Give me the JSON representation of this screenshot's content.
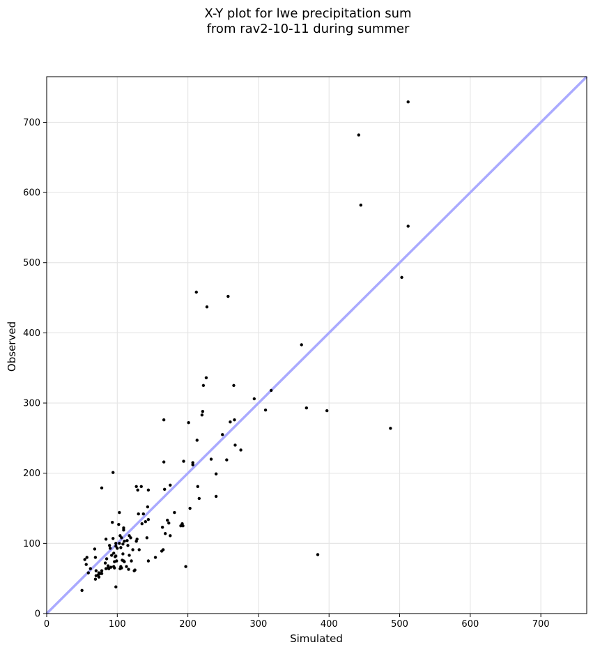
{
  "chart_data": {
    "type": "scatter",
    "title_line1": "X-Y plot for lwe precipitation sum",
    "title_line2": "from rav2-10-11 during summer",
    "xlabel": "Simulated",
    "ylabel": "Observed",
    "xlim": [
      0,
      765
    ],
    "ylim": [
      0,
      765
    ],
    "xticks": [
      0,
      100,
      200,
      300,
      400,
      500,
      600,
      700
    ],
    "yticks": [
      0,
      100,
      200,
      300,
      400,
      500,
      600,
      700
    ],
    "xtick_labels": [
      "0",
      "100",
      "200",
      "300",
      "400",
      "500",
      "600",
      "700"
    ],
    "ytick_labels": [
      "0",
      "100",
      "200",
      "300",
      "400",
      "500",
      "600",
      "700"
    ],
    "grid": true,
    "reference_line": {
      "type": "identity",
      "color": "#aaaaff"
    },
    "point_color": "#000000",
    "points": [
      [
        512,
        729
      ],
      [
        442,
        682
      ],
      [
        445,
        582
      ],
      [
        512,
        552
      ],
      [
        503,
        479
      ],
      [
        212,
        458
      ],
      [
        257,
        452
      ],
      [
        227,
        437
      ],
      [
        361,
        383
      ],
      [
        226,
        336
      ],
      [
        222,
        325
      ],
      [
        265,
        325
      ],
      [
        318,
        318
      ],
      [
        294,
        306
      ],
      [
        368,
        293
      ],
      [
        310,
        290
      ],
      [
        397,
        289
      ],
      [
        221,
        288
      ],
      [
        220,
        283
      ],
      [
        166,
        276
      ],
      [
        266,
        276
      ],
      [
        260,
        273
      ],
      [
        201,
        272
      ],
      [
        487,
        264
      ],
      [
        249,
        255
      ],
      [
        213,
        247
      ],
      [
        267,
        240
      ],
      [
        275,
        233
      ],
      [
        233,
        220
      ],
      [
        255,
        219
      ],
      [
        166,
        216
      ],
      [
        194,
        217
      ],
      [
        207,
        215
      ],
      [
        207,
        212
      ],
      [
        94,
        201
      ],
      [
        240,
        199
      ],
      [
        175,
        183
      ],
      [
        127,
        181
      ],
      [
        214,
        181
      ],
      [
        134,
        181
      ],
      [
        78,
        179
      ],
      [
        167,
        177
      ],
      [
        129,
        176
      ],
      [
        144,
        176
      ],
      [
        240,
        167
      ],
      [
        216,
        164
      ],
      [
        203,
        150
      ],
      [
        143,
        152
      ],
      [
        103,
        144
      ],
      [
        181,
        144
      ],
      [
        130,
        142
      ],
      [
        137,
        142
      ],
      [
        144,
        134
      ],
      [
        140,
        131
      ],
      [
        93,
        130
      ],
      [
        135,
        128
      ],
      [
        171,
        133
      ],
      [
        173,
        129
      ],
      [
        192,
        128
      ],
      [
        102,
        127
      ],
      [
        193,
        125
      ],
      [
        190,
        125
      ],
      [
        164,
        123
      ],
      [
        109,
        122
      ],
      [
        109,
        119
      ],
      [
        168,
        114
      ],
      [
        175,
        111
      ],
      [
        104,
        111
      ],
      [
        117,
        111
      ],
      [
        119,
        108
      ],
      [
        106,
        108
      ],
      [
        128,
        106
      ],
      [
        94,
        107
      ],
      [
        84,
        106
      ],
      [
        142,
        108
      ],
      [
        110,
        103
      ],
      [
        114,
        104
      ],
      [
        127,
        103
      ],
      [
        103,
        100
      ],
      [
        98,
        100
      ],
      [
        108,
        99
      ],
      [
        89,
        97
      ],
      [
        115,
        97
      ],
      [
        98,
        96
      ],
      [
        90,
        93
      ],
      [
        68,
        92
      ],
      [
        105,
        94
      ],
      [
        100,
        93
      ],
      [
        131,
        91
      ],
      [
        122,
        91
      ],
      [
        165,
        91
      ],
      [
        163,
        89
      ],
      [
        95,
        86
      ],
      [
        108,
        85
      ],
      [
        92,
        83
      ],
      [
        117,
        83
      ],
      [
        98,
        82
      ],
      [
        97,
        81
      ],
      [
        154,
        80
      ],
      [
        57,
        80
      ],
      [
        69,
        80
      ],
      [
        85,
        78
      ],
      [
        54,
        77
      ],
      [
        107,
        76
      ],
      [
        99,
        75
      ],
      [
        120,
        75
      ],
      [
        144,
        75
      ],
      [
        109,
        75
      ],
      [
        96,
        74
      ],
      [
        110,
        74
      ],
      [
        83,
        72
      ],
      [
        56,
        70
      ],
      [
        105,
        67
      ],
      [
        113,
        67
      ],
      [
        95,
        67
      ],
      [
        91,
        66
      ],
      [
        87,
        65
      ],
      [
        96,
        65
      ],
      [
        84,
        64
      ],
      [
        104,
        64
      ],
      [
        62,
        64
      ],
      [
        106,
        65
      ],
      [
        116,
        63
      ],
      [
        88,
        64
      ],
      [
        124,
        61
      ],
      [
        70,
        61
      ],
      [
        78,
        61
      ],
      [
        87,
        68
      ],
      [
        74,
        58
      ],
      [
        59,
        58
      ],
      [
        78,
        57
      ],
      [
        76,
        57
      ],
      [
        73,
        55
      ],
      [
        70,
        54
      ],
      [
        74,
        52
      ],
      [
        69,
        49
      ],
      [
        98,
        38
      ],
      [
        197,
        67
      ],
      [
        384,
        84
      ],
      [
        50,
        33
      ],
      [
        125,
        62
      ]
    ]
  }
}
